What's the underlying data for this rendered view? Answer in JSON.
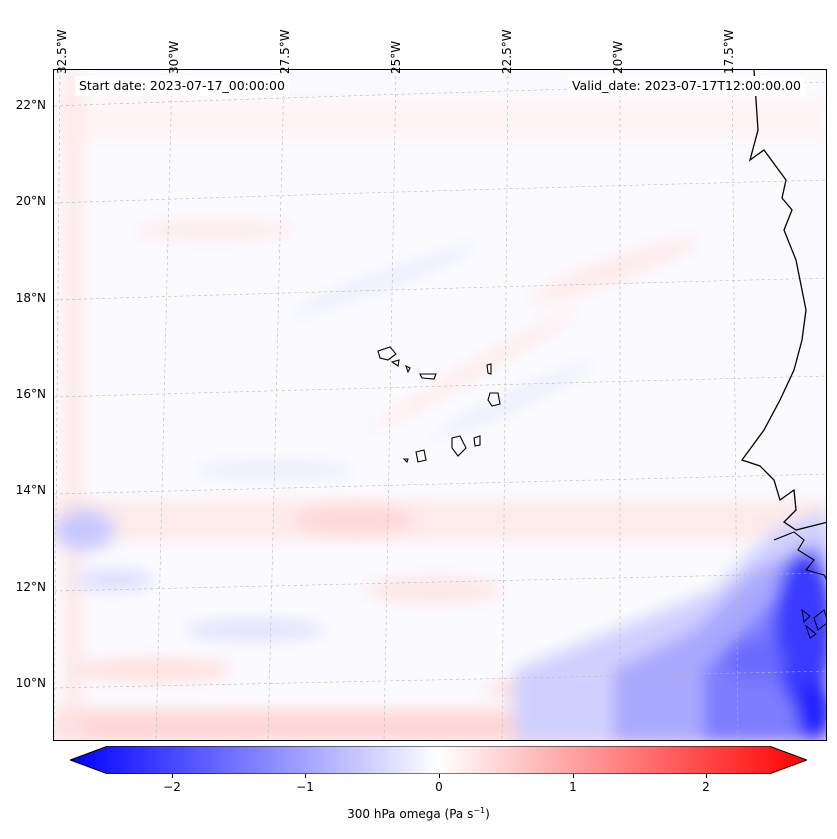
{
  "map": {
    "start_date": "Start date: 2023-07-17_00:00:00",
    "valid_date": "Valid_date: 2023-07-17T12:00:00.00",
    "lon_labels": [
      "32.5°W",
      "30°W",
      "27.5°W",
      "25°W",
      "22.5°W",
      "20°W",
      "17.5°W"
    ],
    "lat_labels": [
      "22°N",
      "20°N",
      "18°N",
      "16°N",
      "14°N",
      "12°N",
      "10°N"
    ],
    "colors": {
      "negative": "#0000ff",
      "neutral": "#ffffff",
      "positive": "#ff0000",
      "coast": "#000000"
    }
  },
  "colorbar": {
    "label_text": "300 hPa omega (Pa s",
    "label_exp": "−1",
    "label_close": ")",
    "ticks": [
      "−2",
      "−1",
      "0",
      "1",
      "2"
    ],
    "range": [
      -2.7,
      2.7
    ]
  }
}
